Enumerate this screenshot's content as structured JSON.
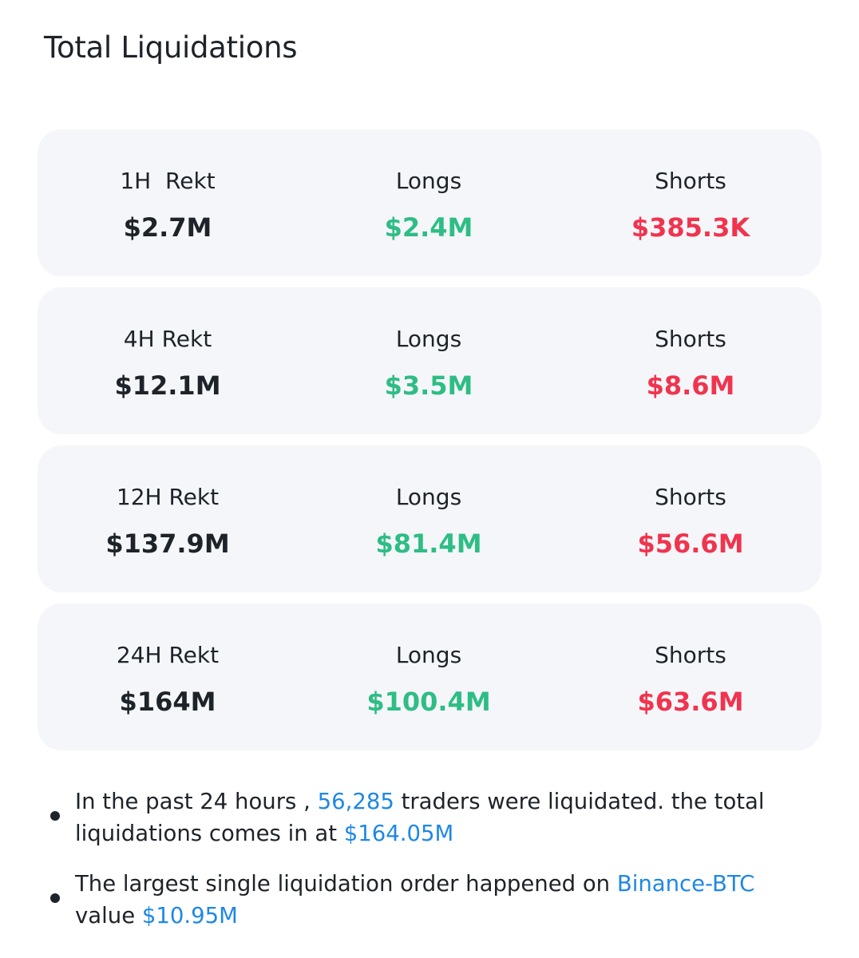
{
  "title": "Total Liquidations",
  "colors": {
    "long": "#2ebd85",
    "short": "#f0344f",
    "highlight": "#1e88e5",
    "card_bg": "#f4f6f9"
  },
  "rows": [
    {
      "period_label": "1H  Rekt",
      "total": "$2.7M",
      "longs_label": "Longs",
      "longs": "$2.4M",
      "shorts_label": "Shorts",
      "shorts": "$385.3K"
    },
    {
      "period_label": "4H Rekt",
      "total": "$12.1M",
      "longs_label": "Longs",
      "longs": "$3.5M",
      "shorts_label": "Shorts",
      "shorts": "$8.6M"
    },
    {
      "period_label": "12H Rekt",
      "total": "$137.9M",
      "longs_label": "Longs",
      "longs": "$81.4M",
      "shorts_label": "Shorts",
      "shorts": "$56.6M"
    },
    {
      "period_label": "24H Rekt",
      "total": "$164M",
      "longs_label": "Longs",
      "longs": "$100.4M",
      "shorts_label": "Shorts",
      "shorts": "$63.6M"
    }
  ],
  "notes": [
    {
      "part1": "In the past 24 hours , ",
      "traders": "56,285",
      "part2": " traders were liquidated. the total liquidations comes in at ",
      "total": "$164.05M"
    },
    {
      "part1": "The largest single liquidation order happened on ",
      "exchange": "Binance-BTC",
      "part2": " value ",
      "value": "$10.95M"
    }
  ]
}
